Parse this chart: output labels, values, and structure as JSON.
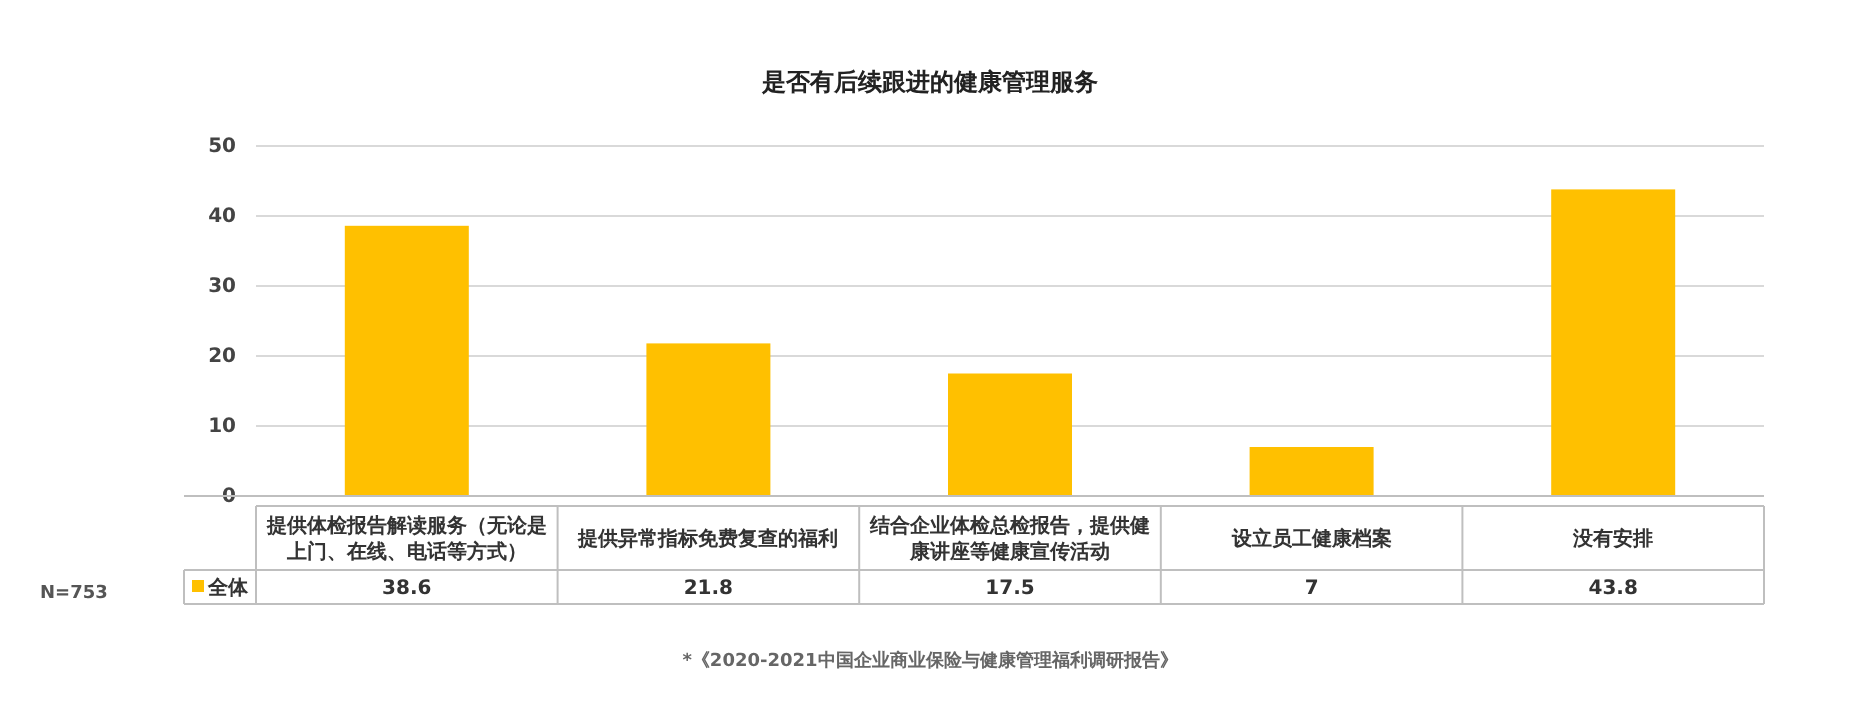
{
  "chart_data": {
    "type": "bar",
    "title": "是否有后续跟进的健康管理服务",
    "categories": [
      "提供体检报告解读服务（无论是上门、在线、电话等方式）",
      "提供异常指标免费复查的福利",
      "结合企业体检总检报告，提供健康讲座等健康宣传活动",
      "设立员工健康档案",
      "没有安排"
    ],
    "series": [
      {
        "name": "全体",
        "color": "#ffc000",
        "values": [
          38.6,
          21.8,
          17.5,
          7,
          43.8
        ]
      }
    ],
    "ylim": [
      0,
      50
    ],
    "yticks": [
      0,
      10,
      20,
      30,
      40,
      50
    ],
    "grid": "y",
    "legend": "bottom left",
    "data_labels": true,
    "annotations": [
      "N=753",
      "*《2020-2021中国企业商业保险与健康管理福利调研报告》"
    ]
  }
}
